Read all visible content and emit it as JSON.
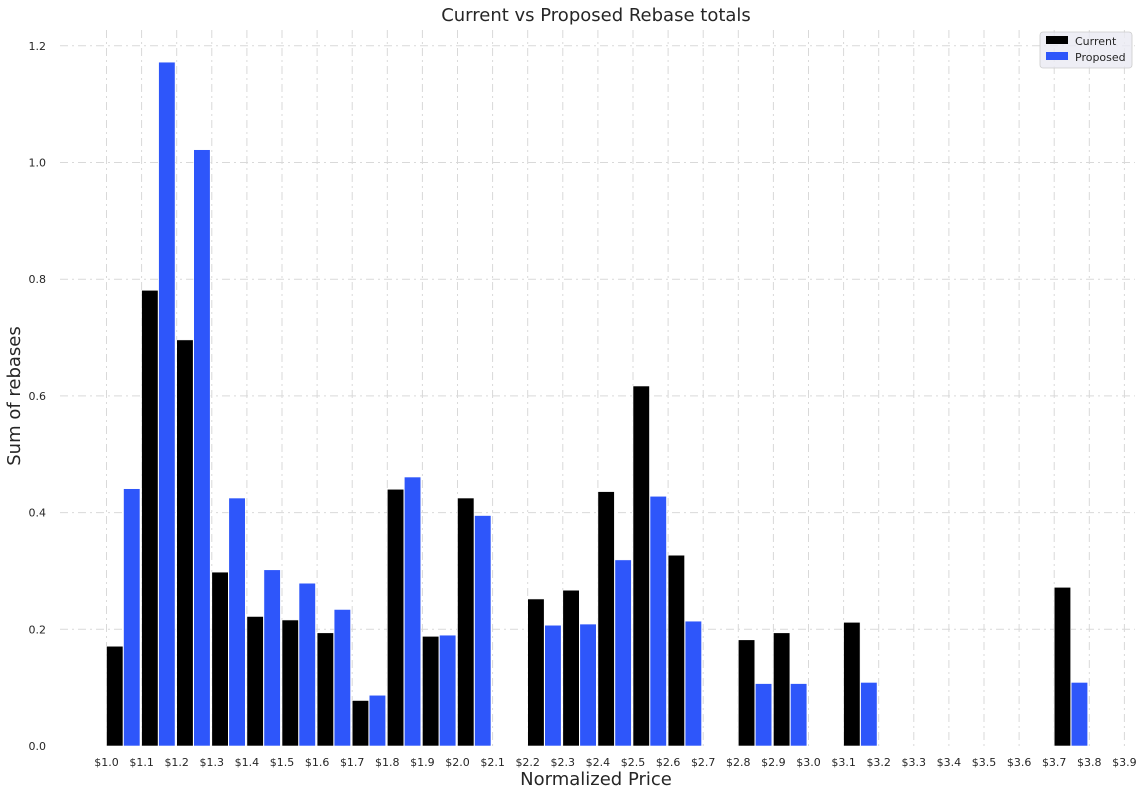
{
  "chart_data": {
    "type": "bar",
    "title": "Current vs Proposed Rebase totals",
    "xlabel": "Normalized Price",
    "ylabel": "Sum of rebases",
    "ylim": [
      0,
      1.24
    ],
    "yticks": [
      "0.0",
      "0.2",
      "0.4",
      "0.6",
      "0.8",
      "1.0",
      "1.2"
    ],
    "ytick_values": [
      0,
      0.2,
      0.4,
      0.6,
      0.8,
      1.0,
      1.2
    ],
    "grid": true,
    "legend_position": "top-right",
    "categories": [
      "$1.0",
      "$1.1",
      "$1.2",
      "$1.3",
      "$1.4",
      "$1.5",
      "$1.6",
      "$1.7",
      "$1.8",
      "$1.9",
      "$2.0",
      "$2.1",
      "$2.2",
      "$2.3",
      "$2.4",
      "$2.5",
      "$2.6",
      "$2.7",
      "$2.8",
      "$2.9",
      "$3.0",
      "$3.1",
      "$3.2",
      "$3.3",
      "$3.4",
      "$3.5",
      "$3.6",
      "$3.7",
      "$3.8",
      "$3.9"
    ],
    "series": [
      {
        "name": "Current",
        "color": "#000000",
        "values": [
          0.171,
          0.781,
          0.696,
          0.298,
          0.222,
          0.216,
          0.194,
          0.078,
          0.44,
          0.188,
          0.425,
          null,
          0.252,
          0.267,
          0.436,
          0.617,
          0.327,
          null,
          0.182,
          0.194,
          null,
          0.212,
          null,
          null,
          null,
          null,
          null,
          0.272,
          null,
          null
        ]
      },
      {
        "name": "Proposed",
        "color": "#2e56fa",
        "values": [
          0.441,
          1.172,
          1.022,
          0.425,
          0.302,
          0.279,
          0.234,
          0.087,
          0.461,
          0.19,
          0.395,
          null,
          0.207,
          0.209,
          0.319,
          0.428,
          0.214,
          null,
          0.107,
          0.107,
          null,
          0.109,
          null,
          null,
          null,
          null,
          null,
          0.109,
          null,
          null
        ]
      }
    ]
  }
}
